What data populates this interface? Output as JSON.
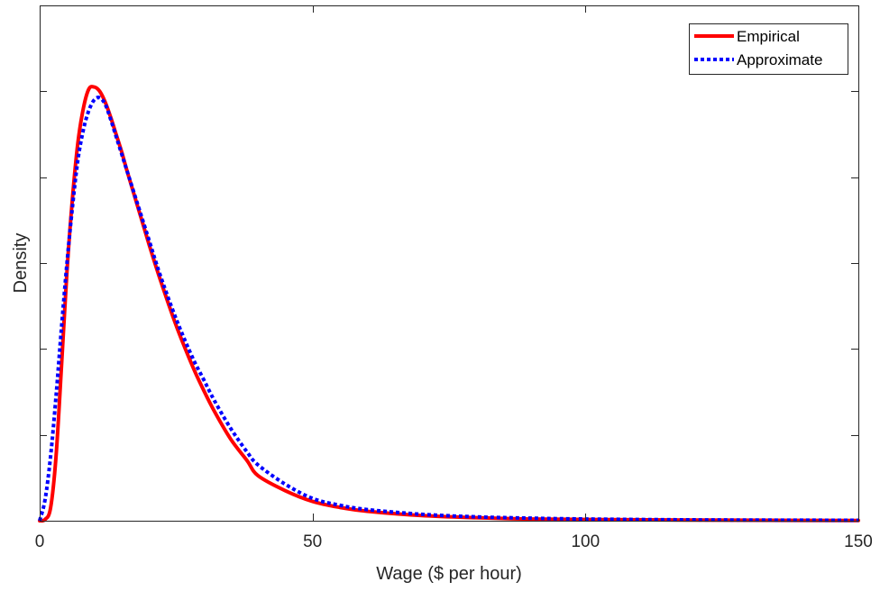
{
  "chart_data": {
    "type": "line",
    "title": "",
    "xlabel": "Wage ($ per hour)",
    "ylabel": "Density",
    "xlim": [
      0,
      150
    ],
    "ylim": [
      0,
      1.2
    ],
    "xticks": [
      0,
      50,
      100,
      150
    ],
    "xtick_labels": [
      "0",
      "50",
      "100",
      "150"
    ],
    "yticks": [
      0.2,
      0.4,
      0.6,
      0.8,
      1.0
    ],
    "ytick_labels_shown": false,
    "grid": false,
    "legend_position": "top-right",
    "series": [
      {
        "name": "Empirical",
        "color": "#ff0000",
        "style": "solid",
        "x": [
          0,
          1,
          2,
          3,
          4,
          5,
          6,
          7,
          8,
          9,
          10,
          11,
          12,
          13,
          14,
          15,
          16,
          18,
          20,
          22,
          25,
          28,
          30,
          32,
          35,
          38,
          40,
          45,
          50,
          55,
          60,
          70,
          80,
          90,
          100,
          120,
          150
        ],
        "y": [
          0.0,
          0.003,
          0.03,
          0.15,
          0.36,
          0.58,
          0.75,
          0.88,
          0.96,
          1.005,
          1.01,
          1.0,
          0.975,
          0.94,
          0.9,
          0.86,
          0.815,
          0.73,
          0.645,
          0.565,
          0.455,
          0.36,
          0.305,
          0.255,
          0.19,
          0.14,
          0.105,
          0.07,
          0.045,
          0.031,
          0.022,
          0.012,
          0.007,
          0.004,
          0.003,
          0.0015,
          0.0005
        ]
      },
      {
        "name": "Approximate",
        "color": "#0000ff",
        "style": "dotted",
        "x": [
          0,
          1,
          2,
          3,
          4,
          5,
          6,
          7,
          8,
          9,
          10,
          11,
          12,
          13,
          14,
          15,
          16,
          18,
          20,
          22,
          25,
          28,
          30,
          32,
          35,
          38,
          40,
          45,
          50,
          55,
          60,
          70,
          80,
          90,
          100,
          120,
          150
        ],
        "y": [
          0.0,
          0.05,
          0.15,
          0.29,
          0.45,
          0.6,
          0.73,
          0.84,
          0.91,
          0.955,
          0.98,
          0.985,
          0.97,
          0.935,
          0.895,
          0.855,
          0.815,
          0.735,
          0.655,
          0.575,
          0.47,
          0.38,
          0.33,
          0.28,
          0.215,
          0.16,
          0.13,
          0.085,
          0.052,
          0.036,
          0.026,
          0.015,
          0.009,
          0.006,
          0.004,
          0.002,
          0.001
        ]
      }
    ]
  }
}
